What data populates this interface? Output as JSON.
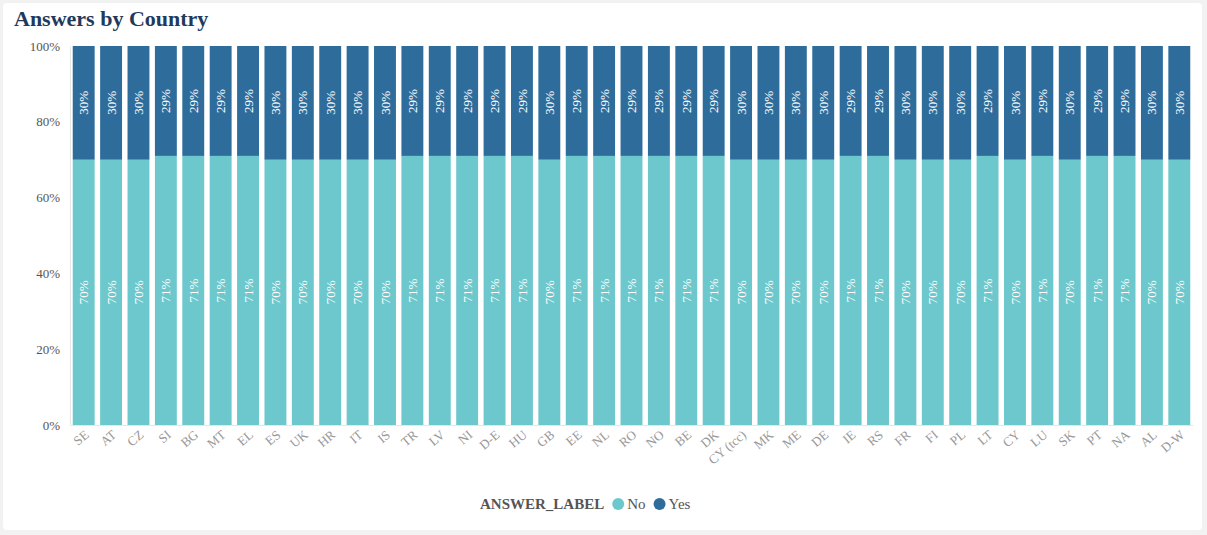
{
  "chart_data": {
    "type": "bar",
    "title": "Answers by Country",
    "stacked": true,
    "data_labels": true,
    "grid": false,
    "legend": "bottom",
    "legend_title": "ANSWER_LABEL",
    "categories": [
      "SE",
      "AT",
      "CZ",
      "SI",
      "BG",
      "MT",
      "EL",
      "ES",
      "UK",
      "HR",
      "IT",
      "IS",
      "TR",
      "LV",
      "NI",
      "D-E",
      "HU",
      "GB",
      "EE",
      "NL",
      "RO",
      "NO",
      "BE",
      "DK",
      "CY (tcc)",
      "MK",
      "ME",
      "DE",
      "IE",
      "RS",
      "FR",
      "FI",
      "PL",
      "LT",
      "CY",
      "LU",
      "SK",
      "PT",
      "NA",
      "AL",
      "D-W"
    ],
    "ylim": [
      0,
      100
    ],
    "yticks": [
      {
        "value": 0,
        "label": "0%"
      },
      {
        "value": 20,
        "label": "20%"
      },
      {
        "value": 40,
        "label": "40%"
      },
      {
        "value": 60,
        "label": "60%"
      },
      {
        "value": 80,
        "label": "80%"
      },
      {
        "value": 100,
        "label": "100%"
      }
    ],
    "series": [
      {
        "name": "No",
        "color": "#6cc8cc",
        "values": [
          70,
          70,
          70,
          71,
          71,
          71,
          71,
          70,
          70,
          70,
          70,
          70,
          71,
          71,
          71,
          71,
          71,
          70,
          71,
          71,
          71,
          71,
          71,
          71,
          70,
          70,
          70,
          70,
          71,
          71,
          70,
          70,
          70,
          71,
          70,
          71,
          70,
          71,
          71,
          70,
          70
        ],
        "value_labels": [
          "70%",
          "70%",
          "70%",
          "71%",
          "71%",
          "71%",
          "71%",
          "70%",
          "70%",
          "70%",
          "70%",
          "70%",
          "71%",
          "71%",
          "71%",
          "71%",
          "71%",
          "70%",
          "71%",
          "71%",
          "71%",
          "71%",
          "71%",
          "71%",
          "70%",
          "70%",
          "70%",
          "70%",
          "71%",
          "71%",
          "70%",
          "70%",
          "70%",
          "71%",
          "70%",
          "71%",
          "70%",
          "71%",
          "71%",
          "70%",
          "70%"
        ]
      },
      {
        "name": "Yes",
        "color": "#2e6d9b",
        "values": [
          30,
          30,
          30,
          29,
          29,
          29,
          29,
          30,
          30,
          30,
          30,
          30,
          29,
          29,
          29,
          29,
          29,
          30,
          29,
          29,
          29,
          29,
          29,
          29,
          30,
          30,
          30,
          30,
          29,
          29,
          30,
          30,
          30,
          29,
          30,
          29,
          30,
          29,
          29,
          30,
          30
        ],
        "value_labels": [
          "30%",
          "30%",
          "30%",
          "29%",
          "29%",
          "29%",
          "29%",
          "30%",
          "30%",
          "30%",
          "30%",
          "30%",
          "29%",
          "29%",
          "29%",
          "29%",
          "29%",
          "30%",
          "29%",
          "29%",
          "29%",
          "29%",
          "29%",
          "29%",
          "30%",
          "30%",
          "30%",
          "30%",
          "29%",
          "29%",
          "30%",
          "30%",
          "30%",
          "29%",
          "30%",
          "29%",
          "30%",
          "29%",
          "29%",
          "30%",
          "30%"
        ]
      }
    ]
  }
}
